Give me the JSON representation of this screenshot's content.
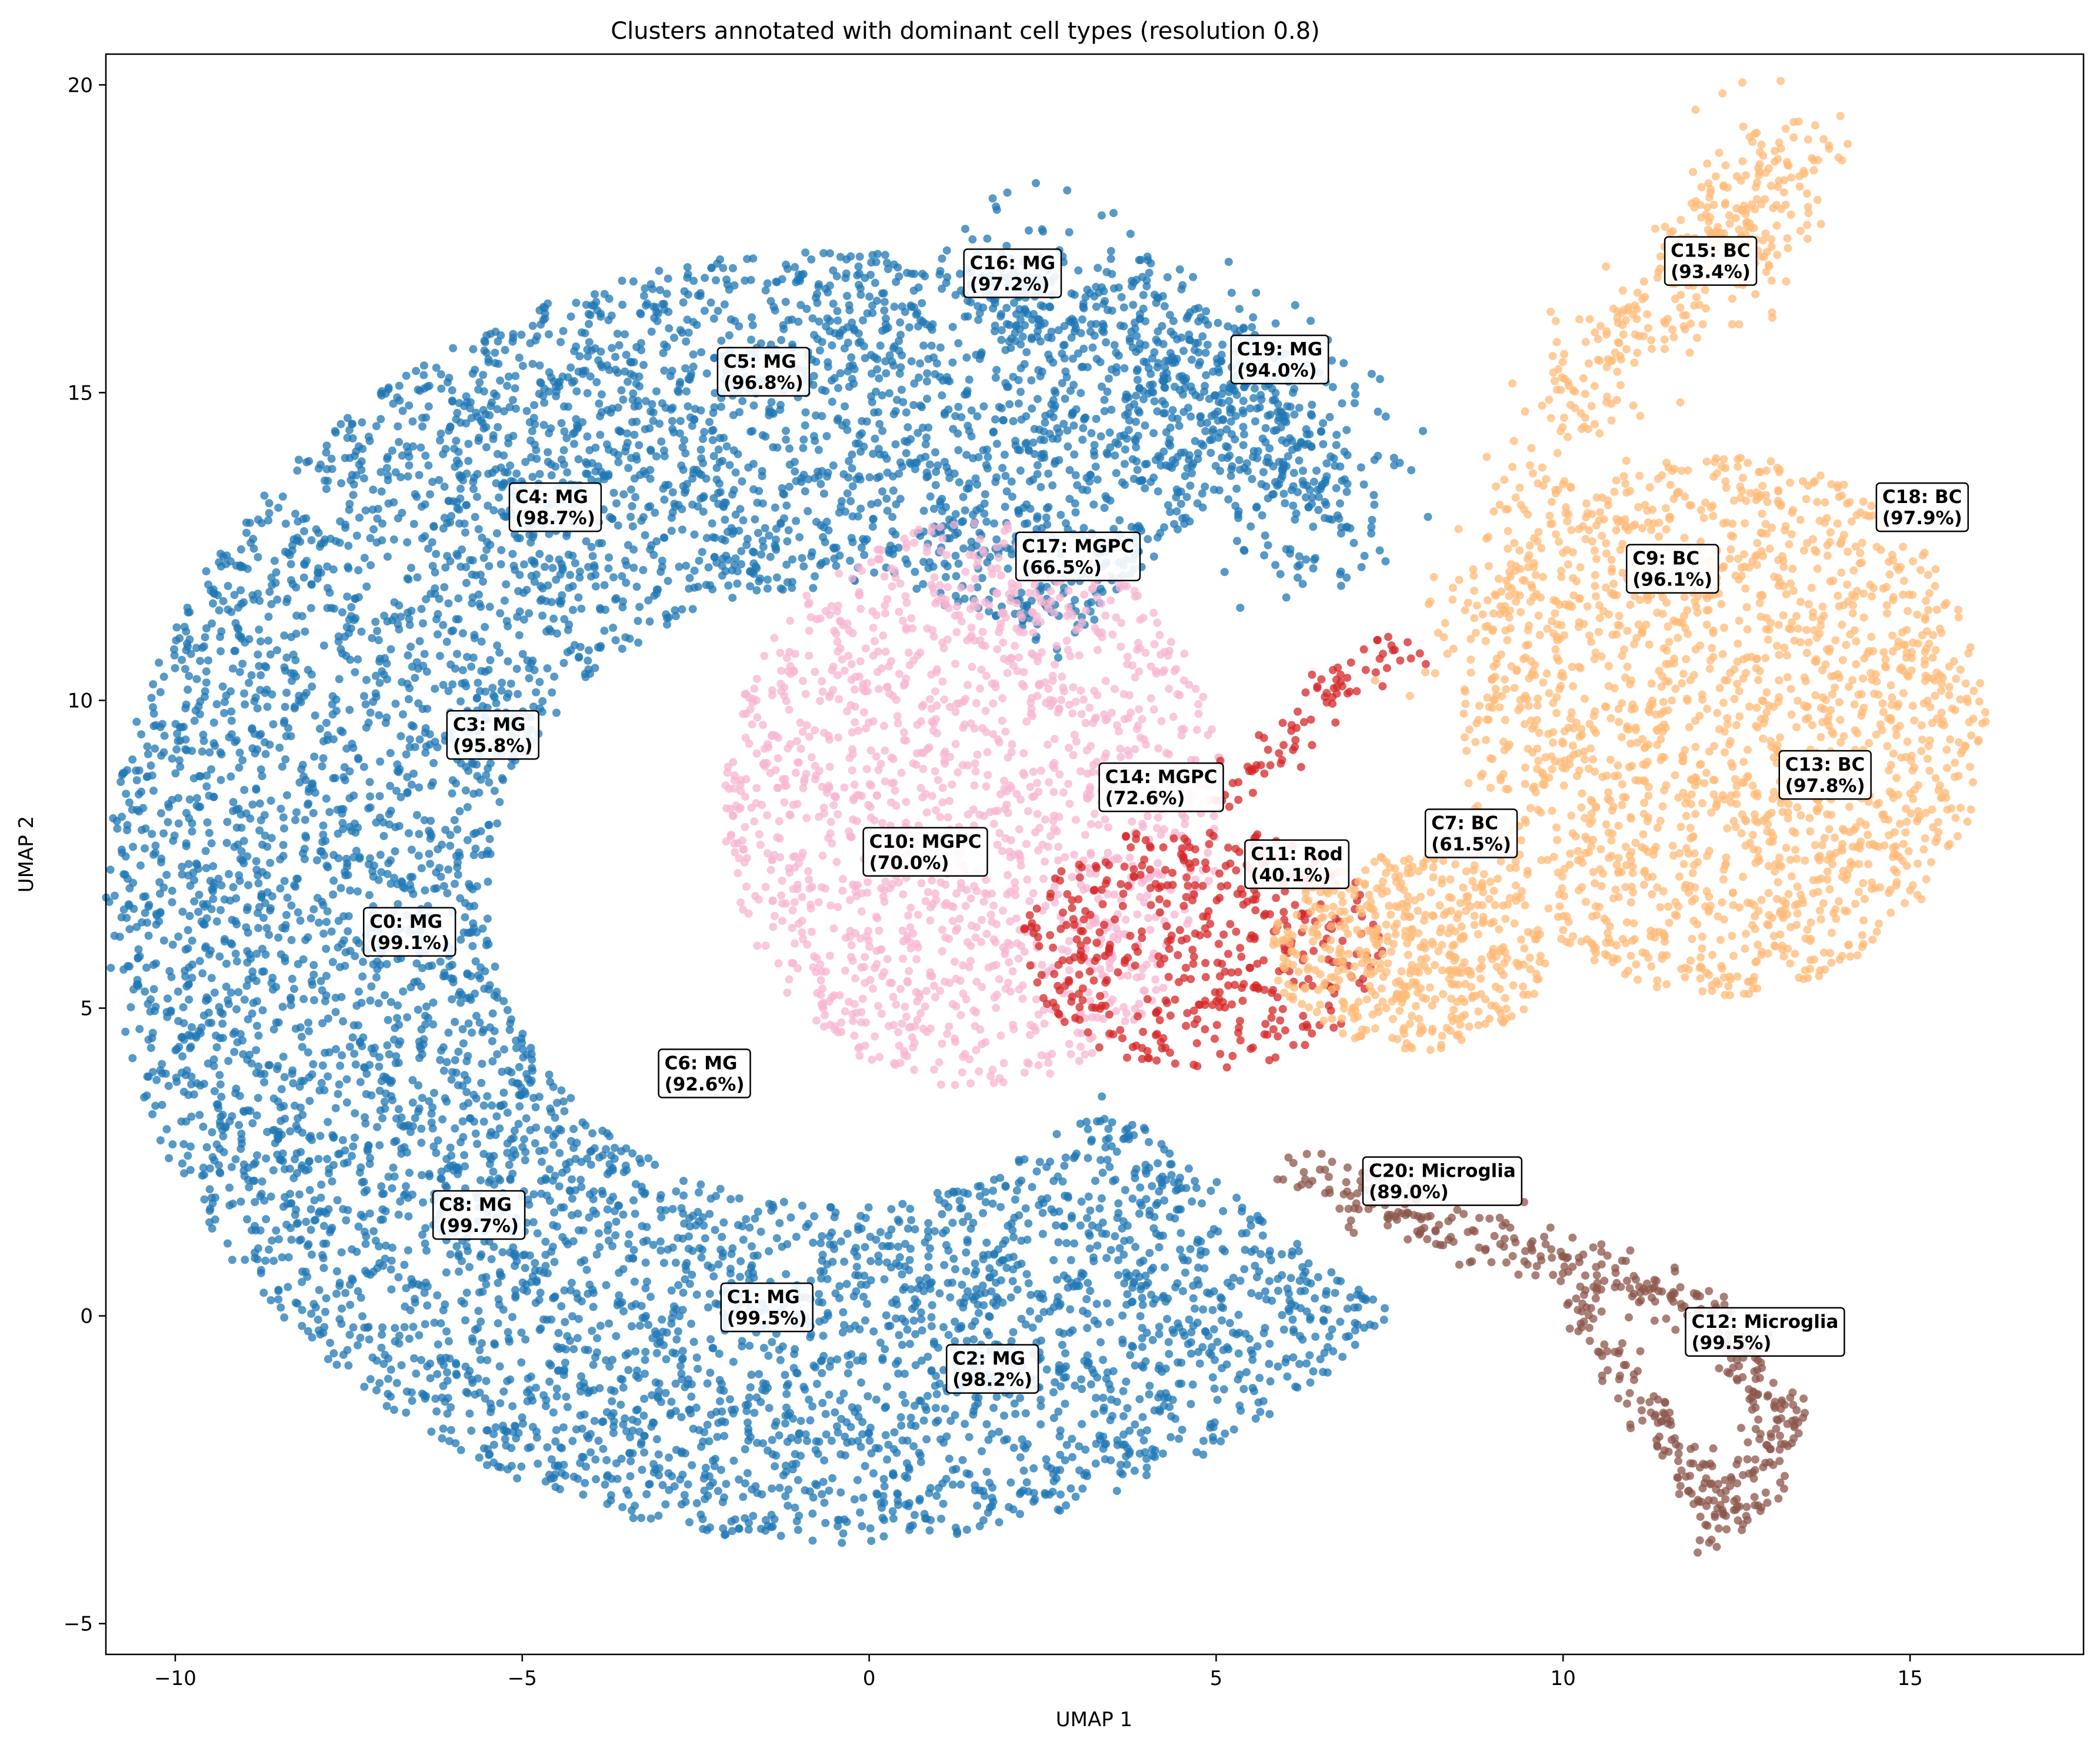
{
  "chart_data": {
    "type": "scatter",
    "title": "Clusters annotated with dominant cell types (resolution 0.8)",
    "xlabel": "UMAP 1",
    "ylabel": "UMAP 2",
    "xlim": [
      -11,
      17.5
    ],
    "ylim": [
      -5.5,
      20.5
    ],
    "xticks": [
      -10,
      -5,
      0,
      5,
      10,
      15
    ],
    "yticks": [
      -5,
      0,
      5,
      10,
      15,
      20
    ],
    "xtick_labels": [
      "−10",
      "−5",
      "0",
      "5",
      "10",
      "15"
    ],
    "ytick_labels": [
      "−5",
      "0",
      "5",
      "10",
      "15",
      "20"
    ],
    "grid": false,
    "legend": "none",
    "cell_type_colors": {
      "MG": "#1f77b4",
      "MGPC": "#f7b6d2",
      "BC": "#ffbb78",
      "Rod": "#d62728",
      "Microglia": "#8c564b"
    },
    "annotations": [
      {
        "line1": "C0: MG",
        "line2": "(99.1%)",
        "x": -7.2,
        "y": 6.0
      },
      {
        "line1": "C1: MG",
        "line2": "(99.5%)",
        "x": -2.05,
        "y": -0.1
      },
      {
        "line1": "C2: MG",
        "line2": "(98.2%)",
        "x": 1.2,
        "y": -1.1
      },
      {
        "line1": "C3: MG",
        "line2": "(95.8%)",
        "x": -6.0,
        "y": 9.2
      },
      {
        "line1": "C4: MG",
        "line2": "(98.7%)",
        "x": -5.1,
        "y": 12.9
      },
      {
        "line1": "C5: MG",
        "line2": "(96.8%)",
        "x": -2.1,
        "y": 15.1
      },
      {
        "line1": "C6: MG",
        "line2": "(92.6%)",
        "x": -2.95,
        "y": 3.7
      },
      {
        "line1": "C7: BC",
        "line2": "(61.5%)",
        "x": 8.1,
        "y": 7.6
      },
      {
        "line1": "C8: MG",
        "line2": "(99.7%)",
        "x": -6.2,
        "y": 1.4
      },
      {
        "line1": "C9: BC",
        "line2": "(96.1%)",
        "x": 11.0,
        "y": 11.9
      },
      {
        "line1": "C10:  MGPC",
        "line2": "(70.0%)",
        "x": 0.0,
        "y": 7.3
      },
      {
        "line1": "C11: Rod",
        "line2": "(40.1%)",
        "x": 5.5,
        "y": 7.1
      },
      {
        "line1": "C12: Microglia",
        "line2": "(99.5%)",
        "x": 11.85,
        "y": -0.5
      },
      {
        "line1": "C13: BC",
        "line2": "(97.8%)",
        "x": 13.2,
        "y": 8.55
      },
      {
        "line1": "C14:  MGPC",
        "line2": "(72.6%)",
        "x": 3.4,
        "y": 8.35
      },
      {
        "line1": "C15: BC",
        "line2": "(93.4%)",
        "x": 11.55,
        "y": 16.9
      },
      {
        "line1": "C16: MG",
        "line2": "(97.2%)",
        "x": 1.45,
        "y": 16.7
      },
      {
        "line1": "C17:  MGPC",
        "line2": "(66.5%)",
        "x": 2.2,
        "y": 12.1
      },
      {
        "line1": "C18: BC",
        "line2": "(97.9%)",
        "x": 14.6,
        "y": 12.9
      },
      {
        "line1": "C19: MG",
        "line2": "(94.0%)",
        "x": 5.3,
        "y": 15.3
      },
      {
        "line1": "C20: Microglia",
        "line2": "(89.0%)",
        "x": 7.2,
        "y": 1.95
      }
    ],
    "series": [
      {
        "cell_type": "MG",
        "color": "#1f77b4",
        "regions": [
          {
            "shape": "ring_sector",
            "cx": -0.5,
            "cy": 6.8,
            "r_inner": 5.0,
            "r_outer": 10.5,
            "angle_from": 50,
            "angle_to": 320,
            "count": 6500
          },
          {
            "shape": "band",
            "points": [
              [
                2.0,
                17.0
              ],
              [
                4.5,
                16.0
              ],
              [
                6.5,
                14.0
              ],
              [
                6.0,
                12.5
              ]
            ],
            "width": 1.3,
            "count": 500
          }
        ]
      },
      {
        "cell_type": "MGPC",
        "color": "#f7b6d2",
        "regions": [
          {
            "shape": "blob",
            "cx": 1.5,
            "cy": 8.3,
            "rx": 3.6,
            "ry": 4.6,
            "count": 1500
          }
        ]
      },
      {
        "cell_type": "Rod",
        "color": "#d62728",
        "regions": [
          {
            "shape": "blob",
            "cx": 4.8,
            "cy": 6.0,
            "rx": 2.6,
            "ry": 2.0,
            "count": 450
          },
          {
            "shape": "band",
            "points": [
              [
                5.2,
                8.5
              ],
              [
                6.5,
                10.0
              ],
              [
                7.8,
                11.0
              ]
            ],
            "width": 0.4,
            "count": 80
          }
        ]
      },
      {
        "cell_type": "BC",
        "color": "#ffbb78",
        "regions": [
          {
            "shape": "blob",
            "cx": 12.3,
            "cy": 9.6,
            "rx": 3.8,
            "ry": 4.4,
            "count": 1700
          },
          {
            "shape": "band",
            "points": [
              [
                8.5,
                10.5
              ],
              [
                10.5,
                15.5
              ],
              [
                12.5,
                17.5
              ],
              [
                13.4,
                19.2
              ]
            ],
            "width": 0.9,
            "count": 420
          },
          {
            "shape": "blob",
            "cx": 7.8,
            "cy": 5.9,
            "rx": 2.0,
            "ry": 1.6,
            "count": 500
          }
        ]
      },
      {
        "cell_type": "Microglia",
        "color": "#8c564b",
        "regions": [
          {
            "shape": "band",
            "points": [
              [
                6.2,
                2.4
              ],
              [
                7.8,
                1.6
              ],
              [
                10.2,
                0.9
              ],
              [
                12.2,
                0.0
              ],
              [
                13.2,
                -1.8
              ],
              [
                12.2,
                -3.6
              ]
            ],
            "width": 0.45,
            "count": 380
          },
          {
            "shape": "band",
            "points": [
              [
                10.2,
                0.4
              ],
              [
                11.2,
                -1.6
              ],
              [
                12.2,
                -3.0
              ]
            ],
            "width": 0.4,
            "count": 120
          }
        ]
      }
    ]
  }
}
